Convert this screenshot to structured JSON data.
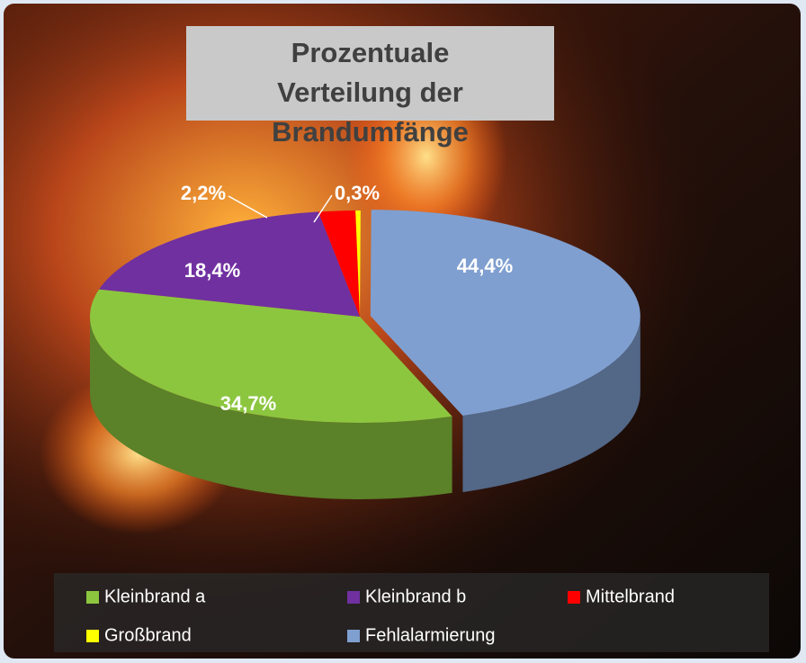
{
  "chart_data": {
    "type": "pie",
    "title": "Prozentuale Verteilung der Brandumfänge",
    "categories": [
      "Kleinbrand a",
      "Kleinbrand b",
      "Mittelbrand",
      "Großbrand",
      "Fehlalarmierung"
    ],
    "values": [
      34.7,
      18.4,
      2.2,
      0.3,
      44.4
    ],
    "value_labels": [
      "34,7%",
      "18,4%",
      "2,2%",
      "0,3%",
      "44,4%"
    ],
    "colors": [
      "#8cc63f",
      "#7030a0",
      "#ff0000",
      "#ffff00",
      "#7f9fd0"
    ],
    "legend": "bottom"
  }
}
